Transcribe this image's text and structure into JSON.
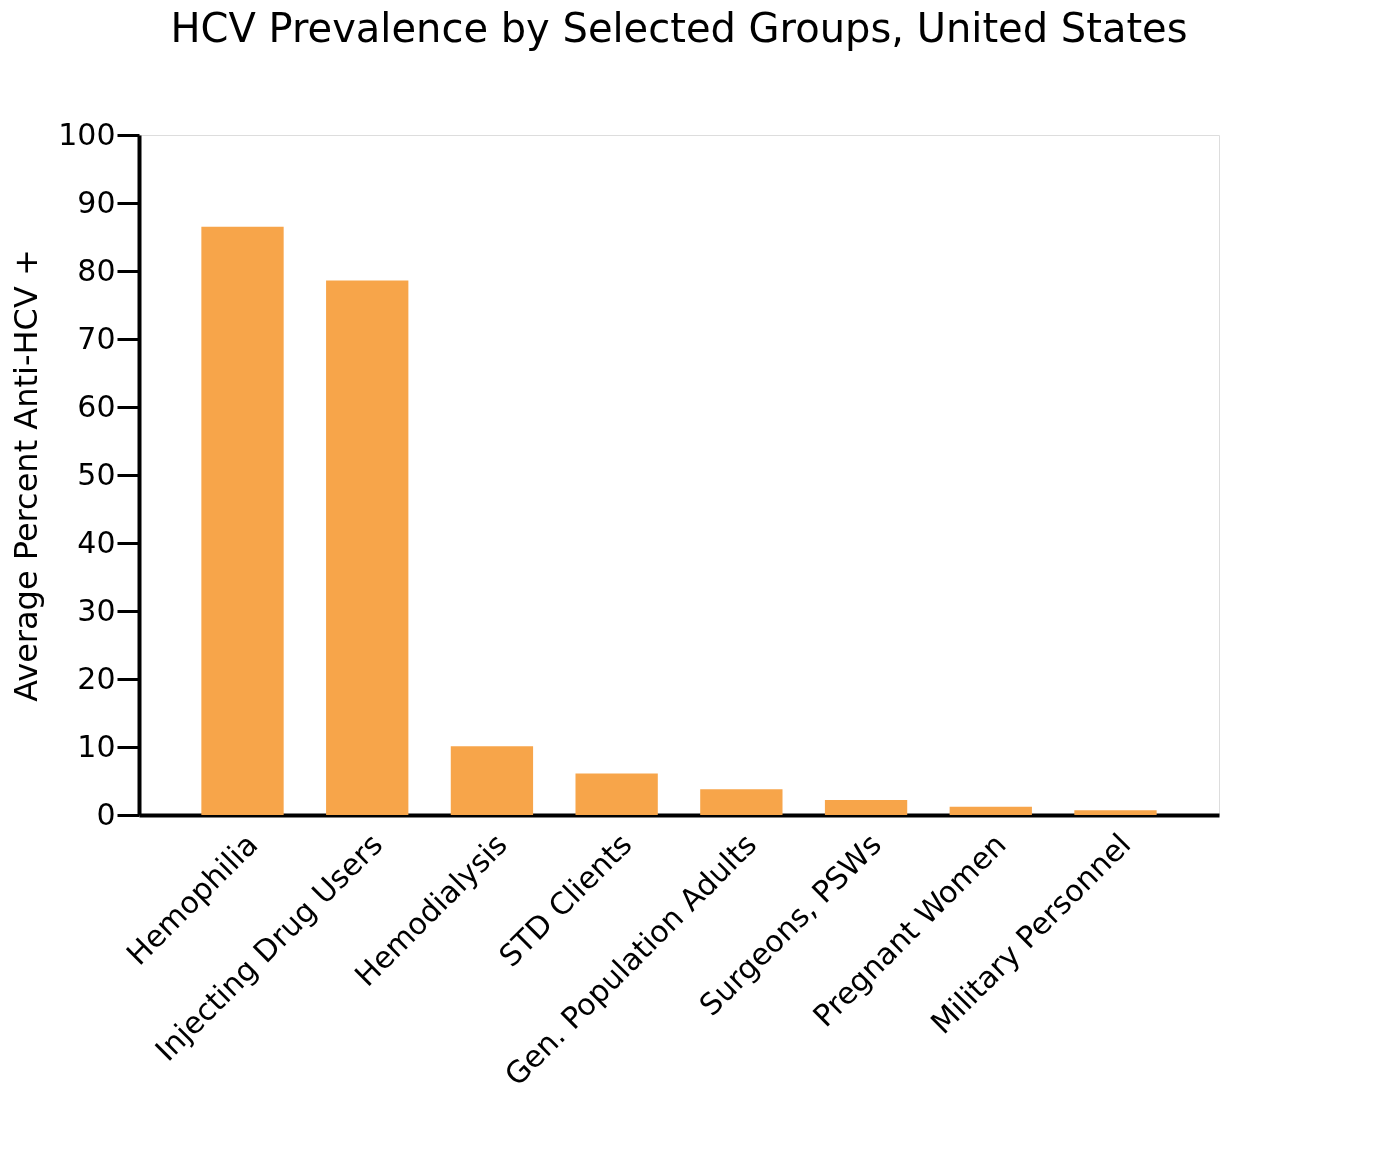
{
  "chart_data": {
    "type": "bar",
    "title": "HCV Prevalence by Selected Groups, United States",
    "ylabel": "Average Percent Anti-HCV +",
    "categories": [
      "Hemophilia",
      "Injecting Drug Users",
      "Hemodialysis",
      "STD Clients",
      "Gen. Population Adults",
      "Surgeons, PSWs",
      "Pregnant Women",
      "Military Personnel"
    ],
    "values": [
      86.5,
      78.6,
      10.1,
      6.1,
      3.8,
      2.2,
      1.2,
      0.7
    ],
    "color": "#f7a54a",
    "ylim": [
      0,
      100
    ],
    "yticks": [
      0,
      10,
      20,
      30,
      40,
      50,
      60,
      70,
      80,
      90,
      100
    ],
    "grid": false
  }
}
